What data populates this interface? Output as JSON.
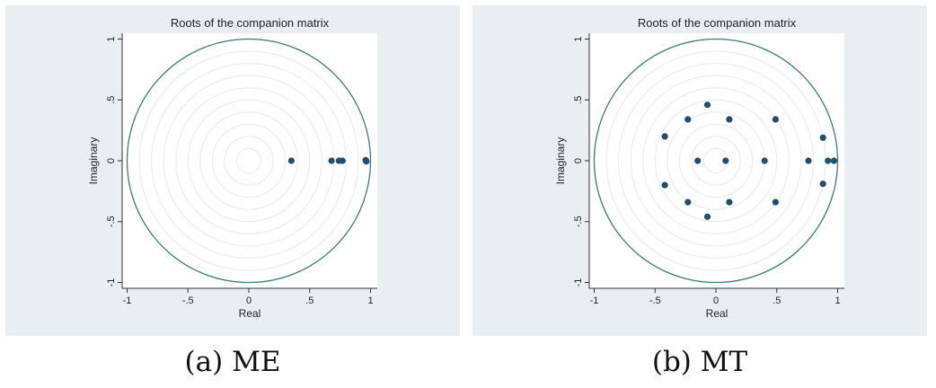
{
  "chart_data": [
    {
      "type": "scatter",
      "title": "Roots of the companion matrix",
      "xlabel": "Real",
      "ylabel": "Imaginary",
      "xlim": [
        -1,
        1
      ],
      "ylim": [
        -1,
        1
      ],
      "x_ticks": [
        "-1",
        "-.5",
        "0",
        ".5",
        "1"
      ],
      "y_ticks": [
        "-1",
        "-.5",
        "0",
        ".5",
        "1"
      ],
      "unit_circle": true,
      "grid": "concentric circles",
      "point_color": "#1f4e6e",
      "circle_color": "#3c7d6c",
      "caption": "(a) ME",
      "points": [
        {
          "x": 0.35,
          "y": 0.0
        },
        {
          "x": 0.68,
          "y": 0.0
        },
        {
          "x": 0.74,
          "y": 0.0
        },
        {
          "x": 0.77,
          "y": 0.0
        },
        {
          "x": 0.96,
          "y": 0.005
        },
        {
          "x": 0.965,
          "y": -0.005
        }
      ]
    },
    {
      "type": "scatter",
      "title": "Roots of the companion matrix",
      "xlabel": "Real",
      "ylabel": "Imaginary",
      "xlim": [
        -1,
        1
      ],
      "ylim": [
        -1,
        1
      ],
      "x_ticks": [
        "-1",
        "-.5",
        "0",
        ".5",
        "1"
      ],
      "y_ticks": [
        "-1",
        "-.5",
        "0",
        ".5",
        "1"
      ],
      "unit_circle": true,
      "grid": "concentric circles",
      "point_color": "#1f4e6e",
      "circle_color": "#3c7d6c",
      "caption": "(b) MT",
      "points": [
        {
          "x": -0.07,
          "y": 0.46
        },
        {
          "x": -0.07,
          "y": -0.46
        },
        {
          "x": -0.23,
          "y": 0.34
        },
        {
          "x": -0.23,
          "y": -0.34
        },
        {
          "x": 0.11,
          "y": 0.34
        },
        {
          "x": 0.11,
          "y": -0.34
        },
        {
          "x": 0.49,
          "y": 0.34
        },
        {
          "x": 0.49,
          "y": -0.34
        },
        {
          "x": -0.42,
          "y": 0.2
        },
        {
          "x": -0.42,
          "y": -0.2
        },
        {
          "x": 0.88,
          "y": 0.19
        },
        {
          "x": 0.88,
          "y": -0.19
        },
        {
          "x": -0.15,
          "y": 0.0
        },
        {
          "x": 0.08,
          "y": 0.0
        },
        {
          "x": 0.4,
          "y": 0.0
        },
        {
          "x": 0.76,
          "y": 0.0
        },
        {
          "x": 0.92,
          "y": 0.0
        },
        {
          "x": 0.97,
          "y": 0.0
        }
      ]
    }
  ]
}
